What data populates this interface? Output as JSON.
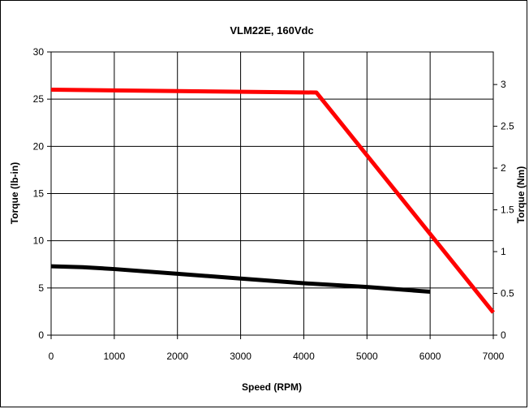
{
  "chart_data": {
    "type": "line",
    "title": "VLM22E, 160Vdc",
    "xlabel": "Speed  (RPM)",
    "ylabel": "Torque (lb-in)",
    "y2label": "Torque (Nm)",
    "xlim": [
      0,
      7000
    ],
    "ylim": [
      0,
      30
    ],
    "y2lim": [
      0,
      3.39
    ],
    "x_ticks": [
      "0",
      "1000",
      "2000",
      "3000",
      "4000",
      "5000",
      "6000",
      "7000"
    ],
    "y_ticks": [
      "0",
      "5",
      "10",
      "15",
      "20",
      "25",
      "30"
    ],
    "y2_ticks": [
      "0",
      "0.5",
      "1",
      "1.5",
      "2",
      "2.5",
      "3"
    ],
    "grid": true,
    "legend": "none",
    "series": [
      {
        "color": "#ff0000",
        "points": [
          [
            0,
            26.0
          ],
          [
            4200,
            25.7
          ],
          [
            7000,
            2.4
          ]
        ]
      },
      {
        "color": "#000000",
        "points": [
          [
            0,
            7.3
          ],
          [
            500,
            7.2
          ],
          [
            1000,
            7.0
          ],
          [
            2000,
            6.5
          ],
          [
            3000,
            6.0
          ],
          [
            4000,
            5.5
          ],
          [
            5000,
            5.1
          ],
          [
            6000,
            4.6
          ]
        ]
      }
    ]
  }
}
